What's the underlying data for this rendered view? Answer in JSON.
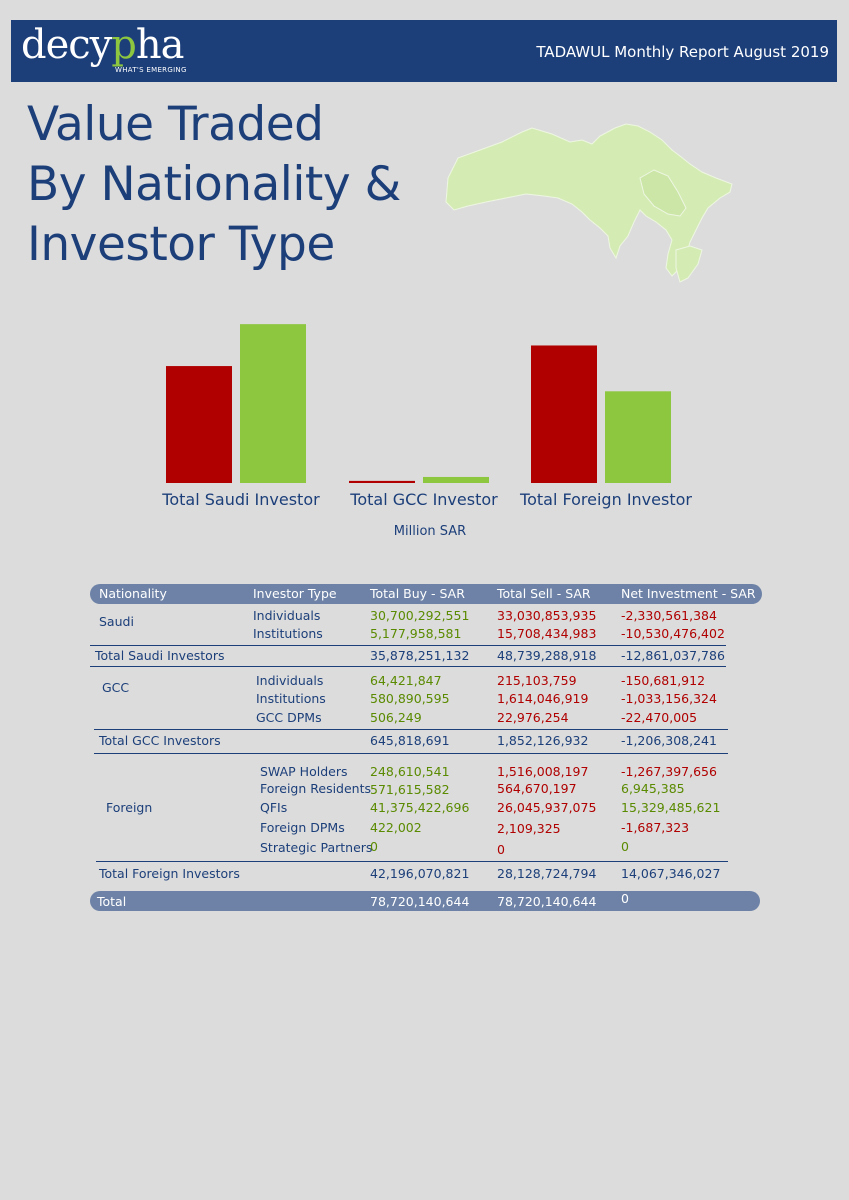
{
  "header": {
    "logo_text_a": "decy",
    "logo_text_q": "p",
    "logo_text_b": "ha",
    "tagline": "WHAT'S EMERGING",
    "report_title": "TADAWUL Monthly Report August 2019"
  },
  "title": {
    "line1": "Value Traded",
    "line2": "By Nationality &",
    "line3": "Investor Type"
  },
  "colors": {
    "buy": "#b00000",
    "sell": "#8dc63f",
    "brand": "#1c3f7a",
    "map": "#d4ecb4"
  },
  "chart_data": {
    "type": "bar",
    "categories": [
      "Total Saudi Investor",
      "Total GCC Investor",
      "Total Foreign Investor"
    ],
    "series": [
      {
        "values": [
          35878.25,
          645.82,
          42196.07
        ],
        "color": "#b00000"
      },
      {
        "values": [
          48739.29,
          1852.13,
          28128.72
        ],
        "color": "#8dc63f"
      }
    ],
    "unit_label": "Million SAR",
    "ylim": [
      0,
      54000
    ]
  },
  "table": {
    "headers": [
      "Nationality",
      "Investor Type",
      "Total Buy - SAR",
      "Total Sell - SAR",
      "Net Investment - SAR"
    ],
    "saudi": {
      "nationality": "Saudi",
      "rows": [
        {
          "type": "Individuals",
          "buy": "30,700,292,551",
          "sell": "33,030,853,935",
          "net": "-2,330,561,384"
        },
        {
          "type": "Institutions",
          "buy": "5,177,958,581",
          "sell": "15,708,434,983",
          "net": "-10,530,476,402"
        }
      ],
      "total": {
        "label": "Total Saudi Investors",
        "buy": "35,878,251,132",
        "sell": "48,739,288,918",
        "net": "-12,861,037,786"
      }
    },
    "gcc": {
      "nationality": "GCC",
      "rows": [
        {
          "type": "Individuals",
          "buy": "64,421,847",
          "sell": "215,103,759",
          "net": "-150,681,912"
        },
        {
          "type": "Institutions",
          "buy": "580,890,595",
          "sell": "1,614,046,919",
          "net": "-1,033,156,324"
        },
        {
          "type": "GCC DPMs",
          "buy": "506,249",
          "sell": "22,976,254",
          "net": "-22,470,005"
        }
      ],
      "total": {
        "label": "Total GCC Investors",
        "buy": "645,818,691",
        "sell": "1,852,126,932",
        "net": "-1,206,308,241"
      }
    },
    "foreign": {
      "nationality": "Foreign",
      "rows": [
        {
          "type": "SWAP Holders",
          "buy": "248,610,541",
          "sell": "1,516,008,197",
          "net": "-1,267,397,656",
          "net_sign": "neg"
        },
        {
          "type": "Foreign Residents",
          "buy": "571,615,582",
          "sell": "564,670,197",
          "net": "6,945,385",
          "net_sign": "pos"
        },
        {
          "type": "QFIs",
          "buy": "41,375,422,696",
          "sell": "26,045,937,075",
          "net": "15,329,485,621",
          "net_sign": "pos"
        },
        {
          "type": "Foreign DPMs",
          "buy": "422,002",
          "sell": "2,109,325",
          "net": "-1,687,323",
          "net_sign": "neg"
        },
        {
          "type": "Strategic Partners",
          "buy": "0",
          "sell": "0",
          "net": "0",
          "net_sign": "pos"
        }
      ],
      "total": {
        "label": "Total Foreign Investors",
        "buy": "42,196,070,821",
        "sell": "28,128,724,794",
        "net": "14,067,346,027"
      }
    },
    "grand_total": {
      "label": "Total",
      "buy": "78,720,140,644",
      "sell": "78,720,140,644",
      "net": "0"
    }
  }
}
